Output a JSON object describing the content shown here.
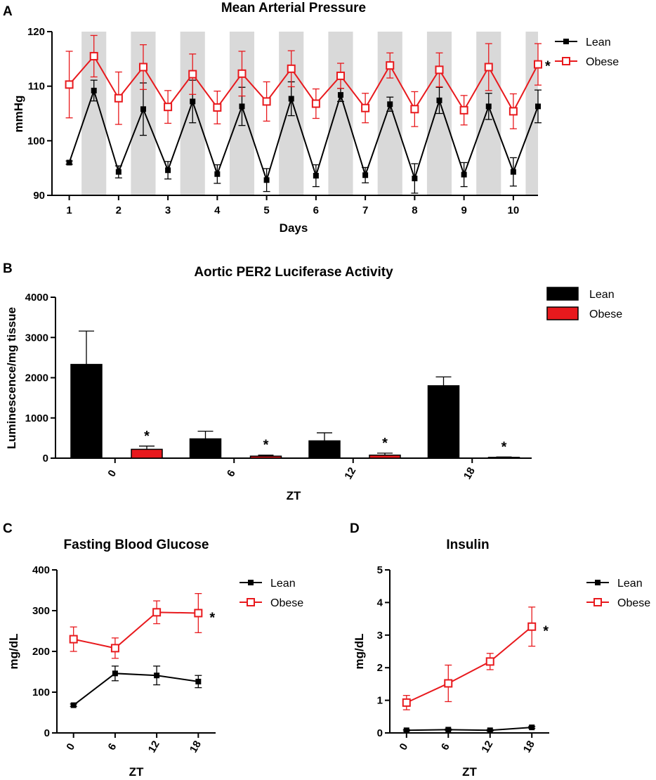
{
  "colors": {
    "lean": "#000000",
    "obese": "#e8191d",
    "shade": "#d9d9d9"
  },
  "chart_data": [
    {
      "id": "A",
      "panel_label": "A",
      "type": "line",
      "title": "Mean Arterial Pressure",
      "xlabel": "Days",
      "ylabel": "mmHg",
      "xlim": [
        0.65,
        10.5
      ],
      "ylim": [
        90,
        120
      ],
      "x_ticks": [
        "1",
        "2",
        "3",
        "4",
        "5",
        "6",
        "7",
        "8",
        "9",
        "10"
      ],
      "y_ticks": [
        "90",
        "100",
        "110",
        "120"
      ],
      "shaded_intervals": [
        [
          1.25,
          1.75
        ],
        [
          2.25,
          2.75
        ],
        [
          3.25,
          3.75
        ],
        [
          4.25,
          4.75
        ],
        [
          5.25,
          5.75
        ],
        [
          6.25,
          6.75
        ],
        [
          7.25,
          7.75
        ],
        [
          8.25,
          8.75
        ],
        [
          9.25,
          9.75
        ],
        [
          10.25,
          10.5
        ]
      ],
      "x": [
        1,
        1.5,
        2,
        2.5,
        3,
        3.5,
        4,
        4.5,
        5,
        5.5,
        6,
        6.5,
        7,
        7.5,
        8,
        8.5,
        9,
        9.5,
        10,
        10.5
      ],
      "series": [
        {
          "name": "Lean",
          "values": [
            96.0,
            109.2,
            94.3,
            105.8,
            94.6,
            107.2,
            93.9,
            106.3,
            92.8,
            107.7,
            93.6,
            108.4,
            93.7,
            106.7,
            93.1,
            107.4,
            93.8,
            106.3,
            94.3,
            106.3
          ],
          "errors": [
            0.3,
            1.9,
            1.1,
            4.8,
            1.6,
            3.9,
            1.7,
            3.5,
            2.1,
            3.1,
            2.0,
            1.2,
            1.4,
            1.3,
            2.7,
            2.4,
            2.2,
            2.4,
            2.6,
            3.0
          ]
        },
        {
          "name": "Obese",
          "values": [
            110.3,
            115.5,
            107.8,
            113.5,
            106.2,
            112.2,
            106.1,
            112.3,
            107.2,
            113.2,
            106.8,
            111.9,
            106.0,
            113.8,
            105.8,
            113.0,
            105.6,
            113.5,
            105.4,
            114.0
          ],
          "errors": [
            6.1,
            3.8,
            4.8,
            4.1,
            3.0,
            3.7,
            3.0,
            4.1,
            3.6,
            3.3,
            2.7,
            2.3,
            2.7,
            2.3,
            3.2,
            3.1,
            2.7,
            4.3,
            3.2,
            3.8
          ]
        }
      ],
      "annotations": [
        {
          "text": "*",
          "series": "Obese"
        }
      ]
    },
    {
      "id": "B",
      "panel_label": "B",
      "type": "bar",
      "title": "Aortic PER2 Luciferase Activity",
      "xlabel": "ZT",
      "ylabel": "Luminescence/mg tissue",
      "ylim": [
        0,
        4000
      ],
      "categories": [
        "0",
        "6",
        "12",
        "18"
      ],
      "y_ticks": [
        "0",
        "1000",
        "2000",
        "3000",
        "4000"
      ],
      "series": [
        {
          "name": "Lean",
          "values": [
            2330,
            480,
            430,
            1800
          ],
          "errors": [
            830,
            190,
            200,
            220
          ]
        },
        {
          "name": "Obese",
          "values": [
            220,
            50,
            75,
            20
          ],
          "errors": [
            80,
            25,
            50,
            10
          ]
        }
      ],
      "annotations": [
        {
          "text": "*",
          "category": "0"
        },
        {
          "text": "*",
          "category": "6"
        },
        {
          "text": "*",
          "category": "12"
        },
        {
          "text": "*",
          "category": "18"
        }
      ]
    },
    {
      "id": "C",
      "panel_label": "C",
      "type": "line",
      "title": "Fasting Blood Glucose",
      "xlabel": "ZT",
      "ylabel": "mg/dL",
      "xlim": [
        -2.4,
        20.5
      ],
      "ylim": [
        0,
        400
      ],
      "x": [
        0,
        6,
        12,
        18
      ],
      "x_ticks": [
        "0",
        "6",
        "12",
        "18"
      ],
      "y_ticks": [
        "0",
        "100",
        "200",
        "300",
        "400"
      ],
      "series": [
        {
          "name": "Lean",
          "values": [
            68,
            146,
            141,
            126
          ],
          "errors": [
            3,
            18,
            23,
            15
          ]
        },
        {
          "name": "Obese",
          "values": [
            230,
            208,
            296,
            294
          ],
          "errors": [
            30,
            25,
            28,
            48
          ]
        }
      ],
      "annotations": [
        {
          "text": "*",
          "series": "Obese"
        }
      ]
    },
    {
      "id": "D",
      "panel_label": "D",
      "type": "line",
      "title": "Insulin",
      "xlabel": "ZT",
      "ylabel": "mg/dL",
      "xlim": [
        -2.4,
        20.5
      ],
      "ylim": [
        0,
        5
      ],
      "x": [
        0,
        6,
        12,
        18
      ],
      "x_ticks": [
        "0",
        "6",
        "12",
        "18"
      ],
      "y_ticks": [
        "0",
        "1",
        "2",
        "3",
        "4",
        "5"
      ],
      "series": [
        {
          "name": "Lean",
          "values": [
            0.08,
            0.1,
            0.08,
            0.17
          ],
          "errors": [
            0.02,
            0.02,
            0.02,
            0.03
          ]
        },
        {
          "name": "Obese",
          "values": [
            0.93,
            1.52,
            2.19,
            3.26
          ],
          "errors": [
            0.22,
            0.56,
            0.25,
            0.6
          ]
        }
      ],
      "annotations": [
        {
          "text": "*",
          "series": "Obese"
        }
      ]
    }
  ]
}
